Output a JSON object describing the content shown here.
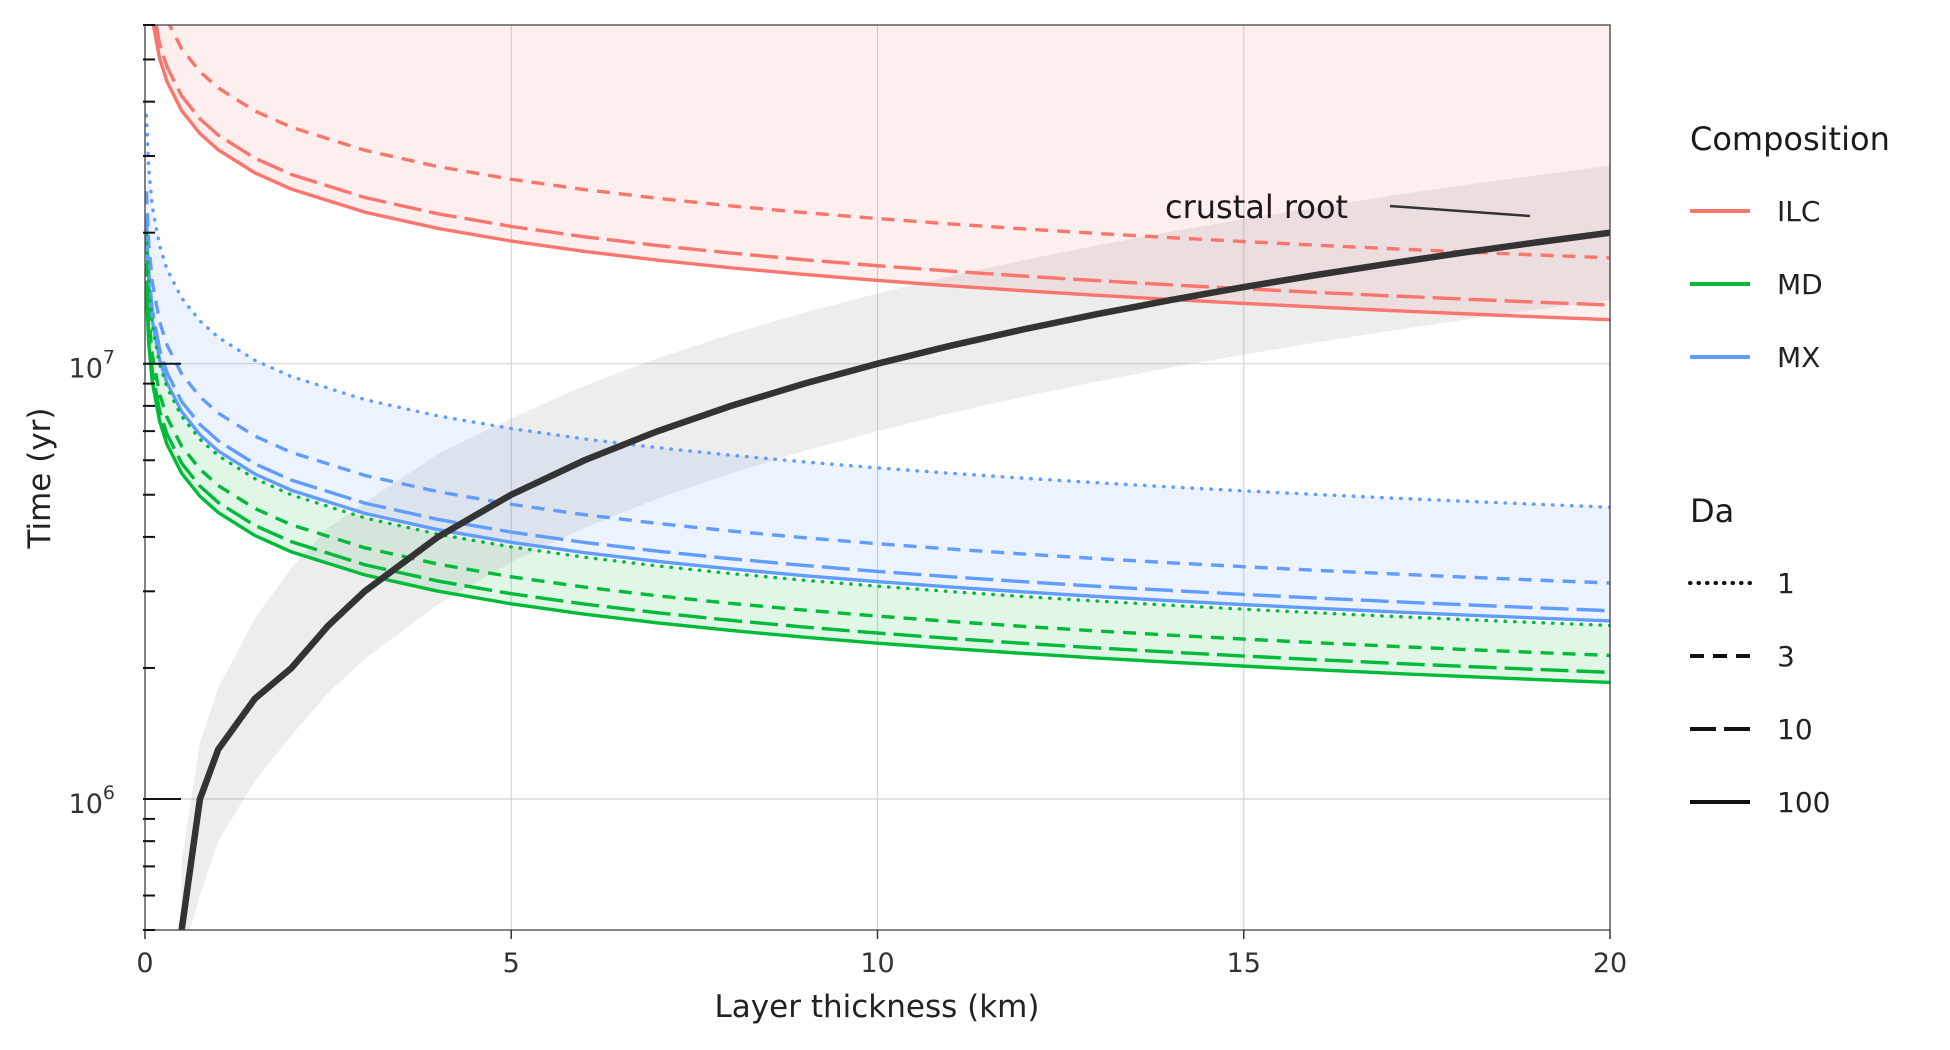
{
  "chart_data": {
    "type": "line",
    "xlabel": "Layer thickness (km)",
    "ylabel": "Time (yr)",
    "xlim": [
      0,
      20
    ],
    "ylim": [
      500000,
      60000000
    ],
    "yscale": "log",
    "grid": true,
    "x_ticks": [
      "0",
      "5",
      "10",
      "15",
      "20"
    ],
    "y_ticks": [
      {
        "base": "10",
        "exp": "6",
        "value": 1000000
      },
      {
        "base": "10",
        "exp": "7",
        "value": 10000000
      }
    ],
    "x": [
      0.02,
      0.05,
      0.1,
      0.2,
      0.3,
      0.5,
      0.75,
      1,
      1.5,
      2,
      3,
      4,
      5,
      6,
      7,
      8,
      9,
      10,
      11,
      12,
      13,
      14,
      15,
      16,
      17,
      18,
      19,
      20
    ],
    "legend": {
      "placement": "right",
      "composition": {
        "title": "Composition",
        "entries": [
          {
            "label": "ILC",
            "color": "#f8766d"
          },
          {
            "label": "MD",
            "color": "#00ba38"
          },
          {
            "label": "MX",
            "color": "#619cff"
          }
        ]
      },
      "da": {
        "title": "Da",
        "entries": [
          {
            "label": "1",
            "dash": "dotted"
          },
          {
            "label": "3",
            "dash": "dashed"
          },
          {
            "label": "10",
            "dash": "longdash"
          },
          {
            "label": "100",
            "dash": "solid"
          }
        ]
      }
    },
    "series": [
      {
        "composition": "ILC",
        "da": "3",
        "color": "#f8766d",
        "dash": "dashed",
        "a": 43000000,
        "b": 0.3
      },
      {
        "composition": "ILC",
        "da": "10",
        "color": "#f8766d",
        "dash": "longdash",
        "a": 33500000,
        "b": 0.3
      },
      {
        "composition": "ILC",
        "da": "100",
        "color": "#f8766d",
        "dash": "solid",
        "a": 31000000,
        "b": 0.3
      },
      {
        "composition": "MX",
        "da": "1",
        "color": "#619cff",
        "dash": "dotted",
        "a": 11500000,
        "b": 0.3
      },
      {
        "composition": "MX",
        "da": "3",
        "color": "#619cff",
        "dash": "dashed",
        "a": 7700000,
        "b": 0.3
      },
      {
        "composition": "MX",
        "da": "10",
        "color": "#619cff",
        "dash": "longdash",
        "a": 6650000,
        "b": 0.3
      },
      {
        "composition": "MX",
        "da": "100",
        "color": "#619cff",
        "dash": "solid",
        "a": 6300000,
        "b": 0.3
      },
      {
        "composition": "MD",
        "da": "1",
        "color": "#00ba38",
        "dash": "dotted",
        "a": 6150000,
        "b": 0.3
      },
      {
        "composition": "MD",
        "da": "3",
        "color": "#00ba38",
        "dash": "dashed",
        "a": 5250000,
        "b": 0.3
      },
      {
        "composition": "MD",
        "da": "10",
        "color": "#00ba38",
        "dash": "longdash",
        "a": 4800000,
        "b": 0.3
      },
      {
        "composition": "MD",
        "da": "100",
        "color": "#00ba38",
        "dash": "solid",
        "a": 4550000,
        "b": 0.3
      }
    ],
    "crustal_root": {
      "label": "crustal root",
      "color": "#333333",
      "x": [
        0.5,
        0.75,
        1,
        1.5,
        2,
        2.5,
        3,
        4,
        5,
        6,
        7,
        8,
        9,
        10,
        11,
        12,
        13,
        14,
        15,
        16,
        17,
        18,
        19,
        20
      ],
      "y": [
        500000,
        1000000,
        1300000,
        1700000,
        2000000,
        2500000,
        3000000,
        4000000,
        5000000,
        6000000,
        7000000,
        8000000,
        9000000,
        10000000,
        11000000,
        12000000,
        13000000,
        14000000,
        15000000,
        16000000,
        17000000,
        18000000,
        19000000,
        20000000
      ],
      "band_low": [
        430000,
        600000,
        800000,
        1100000,
        1400000,
        1750000,
        2100000,
        2800000,
        3500000,
        4200000,
        4900000,
        5600000,
        6300000,
        7000000,
        7700000,
        8400000,
        9100000,
        9800000,
        10500000,
        11200000,
        11900000,
        12600000,
        13300000,
        14000000
      ],
      "band_high": [
        720000,
        1350000,
        1800000,
        2600000,
        3400000,
        4200000,
        4800000,
        6200000,
        7500000,
        8900000,
        10300000,
        11700000,
        13100000,
        14500000,
        15900000,
        17300000,
        18700000,
        20100000,
        21500000,
        22900000,
        24300000,
        25700000,
        27100000,
        28500000
      ]
    },
    "shaded_regions": [
      {
        "composition": "ILC",
        "color": "#f8766d",
        "opacity": 0.12
      },
      {
        "composition": "MX",
        "color": "#619cff",
        "opacity": 0.12
      },
      {
        "composition": "MD",
        "color": "#00ba38",
        "opacity": 0.12
      }
    ]
  }
}
